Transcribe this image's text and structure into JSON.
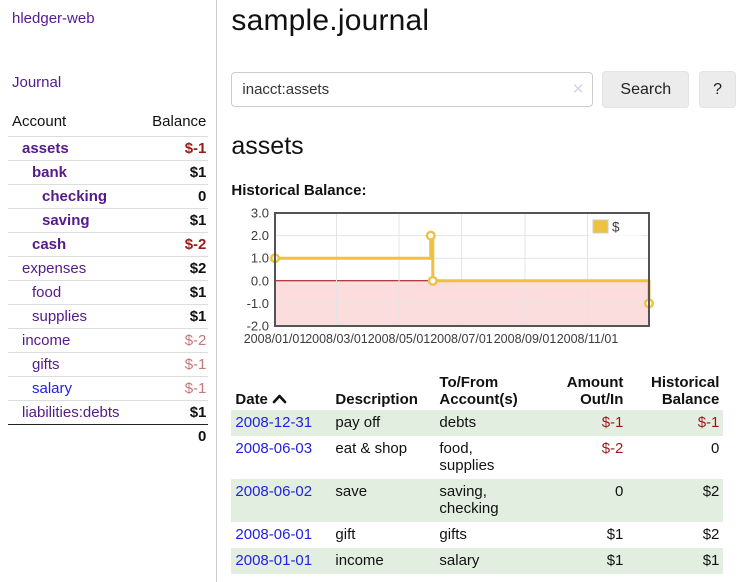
{
  "app": {
    "title": "hledger-web"
  },
  "sidebar": {
    "journal_link": "Journal",
    "accounts": {
      "header_account": "Account",
      "header_balance": "Balance",
      "rows": [
        {
          "name": "assets",
          "balance": "$-1",
          "depth": 0,
          "in_current_query": true,
          "balance_tone": "negative-strong"
        },
        {
          "name": "bank",
          "balance": "$1",
          "depth": 1,
          "in_current_query": true,
          "balance_tone": "normal"
        },
        {
          "name": "checking",
          "balance": "0",
          "depth": 2,
          "in_current_query": true,
          "balance_tone": "normal"
        },
        {
          "name": "saving",
          "balance": "$1",
          "depth": 2,
          "in_current_query": true,
          "balance_tone": "normal"
        },
        {
          "name": "cash",
          "balance": "$-2",
          "depth": 1,
          "in_current_query": true,
          "balance_tone": "negative-strong"
        },
        {
          "name": "expenses",
          "balance": "$2",
          "depth": 0,
          "in_current_query": false,
          "balance_tone": "normal"
        },
        {
          "name": "food",
          "balance": "$1",
          "depth": 1,
          "in_current_query": false,
          "balance_tone": "normal"
        },
        {
          "name": "supplies",
          "balance": "$1",
          "depth": 1,
          "in_current_query": false,
          "balance_tone": "normal"
        },
        {
          "name": "income",
          "balance": "$-2",
          "depth": 0,
          "in_current_query": false,
          "balance_tone": "negative-soft"
        },
        {
          "name": "gifts",
          "balance": "$-1",
          "depth": 1,
          "in_current_query": false,
          "balance_tone": "negative-soft"
        },
        {
          "name": "salary",
          "balance": "$-1",
          "depth": 1,
          "in_current_query": false,
          "balance_tone": "negative-soft",
          "link_color": "blue"
        },
        {
          "name": "liabilities:debts",
          "balance": "$1",
          "depth": 0,
          "in_current_query": false,
          "balance_tone": "normal"
        }
      ],
      "total": "0"
    }
  },
  "main": {
    "title": "sample.journal",
    "search": {
      "value": "inacct:assets",
      "clear_icon": "✕",
      "button_label": "Search",
      "help_label": "?"
    },
    "account_heading": "assets",
    "chart_label": "Historical Balance:"
  },
  "chart_data": {
    "type": "line",
    "style": "step",
    "title": "Historical Balance:",
    "series": [
      {
        "name": "$",
        "color": "#EDC240",
        "points": [
          [
            "2008-01-01",
            1
          ],
          [
            "2008-06-01",
            2
          ],
          [
            "2008-06-03",
            0
          ],
          [
            "2008-12-31",
            -1
          ]
        ]
      }
    ],
    "xlim": [
      "2008-01-01",
      "2008-12-31"
    ],
    "ylim": [
      -2,
      3
    ],
    "x_tick_labels": [
      "2008/01/01",
      "2008/03/01",
      "2008/05/01",
      "2008/07/01",
      "2008/09/01",
      "2008/11/01"
    ],
    "y_tick_labels": [
      "3.0",
      "2.0",
      "1.0",
      "0.0",
      "-1.0",
      "-2.0"
    ],
    "grid": true,
    "legend_position": "top-right",
    "negative_region_color": "#fbdddd",
    "zero_line_color": "#990000",
    "grid_color": "#e4e4e4",
    "border_color": "#545454"
  },
  "register": {
    "headers": {
      "date": "Date",
      "description": "Description",
      "accounts_line1": "To/From",
      "accounts_line2": "Account(s)",
      "amount_line1": "Amount",
      "amount_line2": "Out/In",
      "balance_line1": "Historical",
      "balance_line2": "Balance"
    },
    "sort_icon": "chevron-up",
    "rows": [
      {
        "date": "2008-12-31",
        "description": "pay off",
        "accounts": "debts",
        "amount": "$-1",
        "balance": "$-1",
        "amount_negative": true,
        "balance_negative": true,
        "highlighted": true
      },
      {
        "date": "2008-06-03",
        "description": "eat & shop",
        "accounts": "food, supplies",
        "amount": "$-2",
        "balance": "0",
        "amount_negative": true,
        "balance_negative": false,
        "highlighted": false
      },
      {
        "date": "2008-06-02",
        "description": "save",
        "accounts": "saving, checking",
        "amount": "0",
        "balance": "$2",
        "amount_negative": false,
        "balance_negative": false,
        "highlighted": true
      },
      {
        "date": "2008-06-01",
        "description": "gift",
        "accounts": "gifts",
        "amount": "$1",
        "balance": "$2",
        "amount_negative": false,
        "balance_negative": false,
        "highlighted": false
      },
      {
        "date": "2008-01-01",
        "description": "income",
        "accounts": "salary",
        "amount": "$1",
        "balance": "$1",
        "amount_negative": false,
        "balance_negative": false,
        "highlighted": true
      }
    ]
  }
}
